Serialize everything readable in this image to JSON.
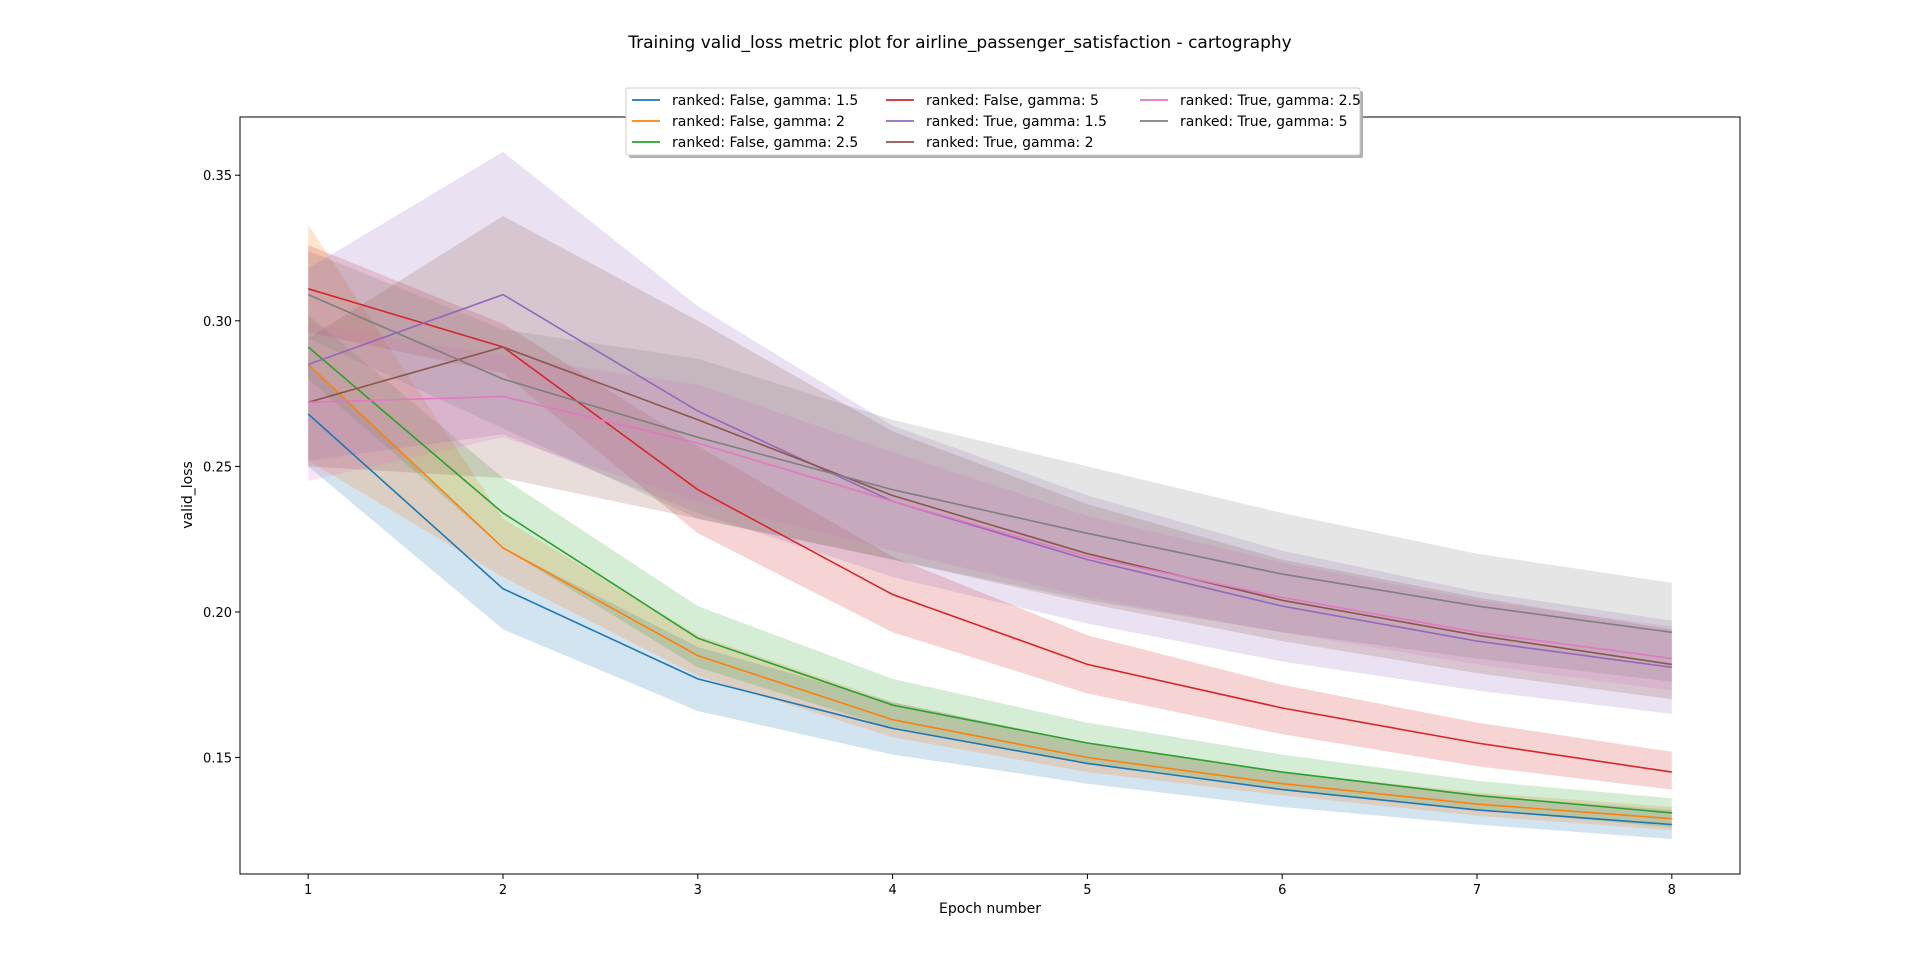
{
  "chart_data": {
    "type": "line",
    "title": "Training valid_loss metric plot for airline_passenger_satisfaction - cartography",
    "xlabel": "Epoch number",
    "ylabel": "valid_loss",
    "x": [
      1,
      2,
      3,
      4,
      5,
      6,
      7,
      8
    ],
    "xticks": [
      "1",
      "2",
      "3",
      "4",
      "5",
      "6",
      "7",
      "8"
    ],
    "xlim": [
      0.65,
      8.35
    ],
    "yticks": [
      "0.15",
      "0.20",
      "0.25",
      "0.30",
      "0.35"
    ],
    "ylim": [
      0.11,
      0.37
    ],
    "grid": false,
    "legend": {
      "position": "top-center",
      "columns": 3,
      "frame": true
    },
    "series": [
      {
        "name": "ranked: False, gamma: 1.5",
        "color": "#1f77b4",
        "values": [
          0.268,
          0.208,
          0.177,
          0.16,
          0.148,
          0.139,
          0.132,
          0.127
        ],
        "lower": [
          0.25,
          0.194,
          0.166,
          0.151,
          0.141,
          0.133,
          0.127,
          0.122
        ],
        "upper": [
          0.285,
          0.222,
          0.188,
          0.169,
          0.155,
          0.145,
          0.137,
          0.132
        ]
      },
      {
        "name": "ranked: False, gamma: 2",
        "color": "#ff7f0e",
        "values": [
          0.285,
          0.222,
          0.185,
          0.163,
          0.15,
          0.141,
          0.134,
          0.129
        ],
        "lower": [
          0.252,
          0.212,
          0.178,
          0.157,
          0.145,
          0.137,
          0.13,
          0.125
        ],
        "upper": [
          0.333,
          0.232,
          0.192,
          0.169,
          0.155,
          0.145,
          0.138,
          0.133
        ]
      },
      {
        "name": "ranked: False, gamma: 2.5",
        "color": "#2ca02c",
        "values": [
          0.291,
          0.234,
          0.191,
          0.168,
          0.155,
          0.145,
          0.137,
          0.131
        ],
        "lower": [
          0.28,
          0.222,
          0.181,
          0.16,
          0.148,
          0.139,
          0.132,
          0.126
        ],
        "upper": [
          0.302,
          0.246,
          0.202,
          0.177,
          0.162,
          0.151,
          0.142,
          0.136
        ]
      },
      {
        "name": "ranked: False, gamma: 5",
        "color": "#d62728",
        "values": [
          0.311,
          0.291,
          0.242,
          0.206,
          0.182,
          0.167,
          0.155,
          0.145
        ],
        "lower": [
          0.296,
          0.282,
          0.227,
          0.193,
          0.172,
          0.158,
          0.147,
          0.139
        ],
        "upper": [
          0.326,
          0.299,
          0.257,
          0.219,
          0.192,
          0.175,
          0.162,
          0.152
        ]
      },
      {
        "name": "ranked: True, gamma: 1.5",
        "color": "#9467bd",
        "values": [
          0.285,
          0.309,
          0.269,
          0.238,
          0.218,
          0.202,
          0.19,
          0.181
        ],
        "lower": [
          0.252,
          0.261,
          0.234,
          0.212,
          0.196,
          0.183,
          0.173,
          0.165
        ],
        "upper": [
          0.318,
          0.358,
          0.305,
          0.264,
          0.24,
          0.221,
          0.207,
          0.197
        ]
      },
      {
        "name": "ranked: True, gamma: 2",
        "color": "#8c564b",
        "values": [
          0.272,
          0.291,
          0.266,
          0.24,
          0.22,
          0.204,
          0.192,
          0.182
        ],
        "lower": [
          0.25,
          0.246,
          0.232,
          0.218,
          0.203,
          0.19,
          0.179,
          0.17
        ],
        "upper": [
          0.294,
          0.336,
          0.3,
          0.262,
          0.237,
          0.218,
          0.205,
          0.194
        ]
      },
      {
        "name": "ranked: True, gamma: 2.5",
        "color": "#e377c2",
        "values": [
          0.272,
          0.274,
          0.258,
          0.238,
          0.219,
          0.205,
          0.193,
          0.184
        ],
        "lower": [
          0.245,
          0.26,
          0.238,
          0.221,
          0.205,
          0.193,
          0.182,
          0.173
        ],
        "upper": [
          0.299,
          0.288,
          0.278,
          0.255,
          0.233,
          0.217,
          0.204,
          0.195
        ]
      },
      {
        "name": "ranked: True, gamma: 5",
        "color": "#7f7f7f",
        "values": [
          0.309,
          0.28,
          0.26,
          0.242,
          0.227,
          0.213,
          0.202,
          0.193
        ],
        "lower": [
          0.294,
          0.263,
          0.232,
          0.218,
          0.204,
          0.193,
          0.184,
          0.176
        ],
        "upper": [
          0.324,
          0.297,
          0.287,
          0.266,
          0.25,
          0.234,
          0.22,
          0.21
        ]
      }
    ]
  }
}
